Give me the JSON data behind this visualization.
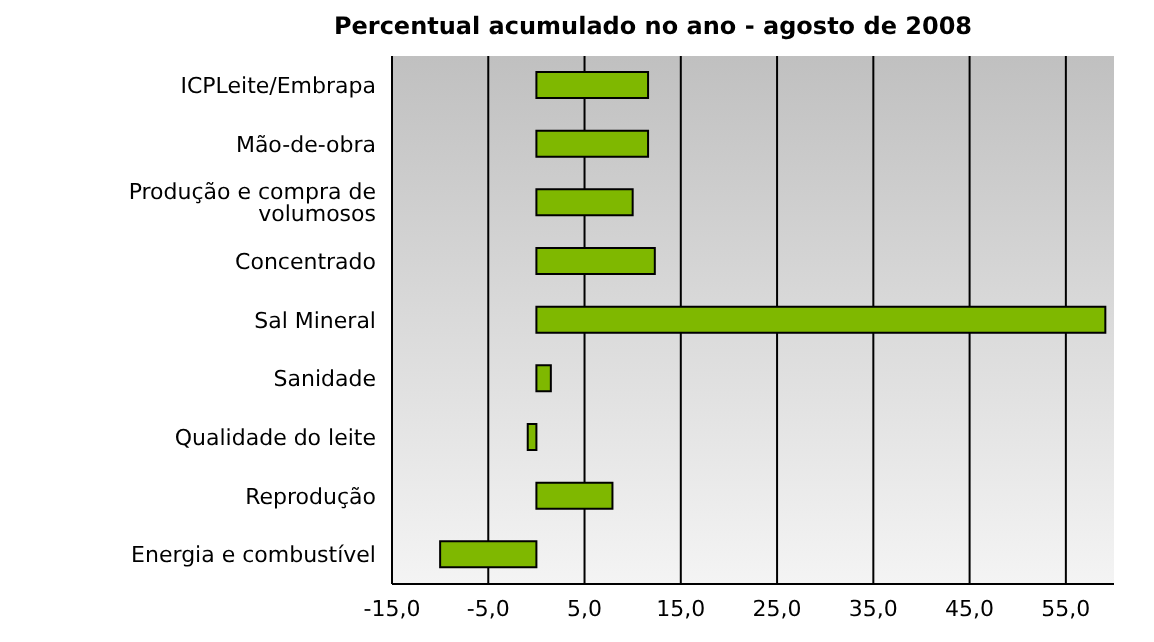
{
  "chart_data": {
    "type": "bar",
    "orientation": "horizontal",
    "title": "Percentual acumulado no ano - agosto de 2008",
    "categories": [
      "ICPLeite/Embrapa",
      "Mão-de-obra",
      "Produção e compra de volumosos",
      "Concentrado",
      "Sal Mineral",
      "Sanidade",
      "Qualidade do leite",
      "Reprodução",
      "Energia e combustível"
    ],
    "values": [
      11.6,
      11.6,
      10.0,
      12.3,
      59.1,
      1.5,
      -0.9,
      7.9,
      -10.0
    ],
    "color": "#7fb800",
    "xlim": [
      -15,
      60
    ],
    "xticks": [
      {
        "value": -15,
        "label": "-15,0"
      },
      {
        "value": -5,
        "label": "-5,0"
      },
      {
        "value": 5,
        "label": "5,0"
      },
      {
        "value": 15,
        "label": "15,0"
      },
      {
        "value": 25,
        "label": "25,0"
      },
      {
        "value": 35,
        "label": "35,0"
      },
      {
        "value": 45,
        "label": "45,0"
      },
      {
        "value": 55,
        "label": "55,0"
      }
    ],
    "grid": "x",
    "legend": false
  }
}
